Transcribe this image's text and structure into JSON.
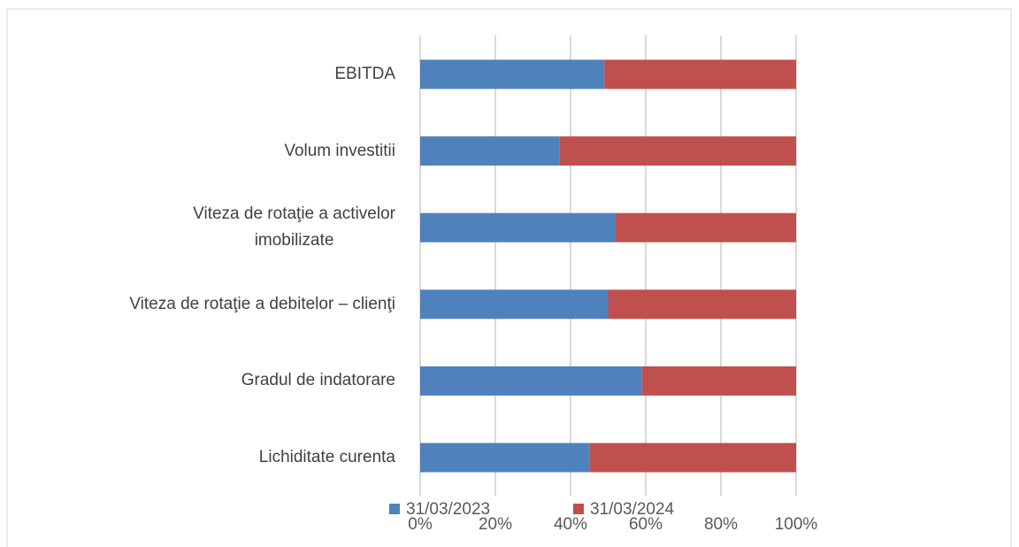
{
  "chart_data": {
    "type": "stacked_bar_horizontal",
    "categories": [
      "EBITDA",
      "Volum investitii",
      "Viteza de rotaţie a activelor\nimobilizate",
      "Viteza de rotaţie a debitelor – clienţi",
      "Gradul de indatorare",
      "Lichiditate curenta"
    ],
    "series": [
      {
        "name": "31/03/2023",
        "color": "#4f81bd",
        "values": [
          49,
          37,
          52,
          50,
          59,
          45
        ]
      },
      {
        "name": "31/03/2024",
        "color": "#c0504d",
        "values": [
          51,
          63,
          48,
          50,
          41,
          55
        ]
      }
    ],
    "xlim": [
      0,
      100
    ],
    "xticks": [
      {
        "value": 0,
        "label": "0%"
      },
      {
        "value": 20,
        "label": "20%"
      },
      {
        "value": 40,
        "label": "40%"
      },
      {
        "value": 60,
        "label": "60%"
      },
      {
        "value": 80,
        "label": "80%"
      },
      {
        "value": 100,
        "label": "100%"
      }
    ],
    "grid": true,
    "legend": "bottom"
  }
}
